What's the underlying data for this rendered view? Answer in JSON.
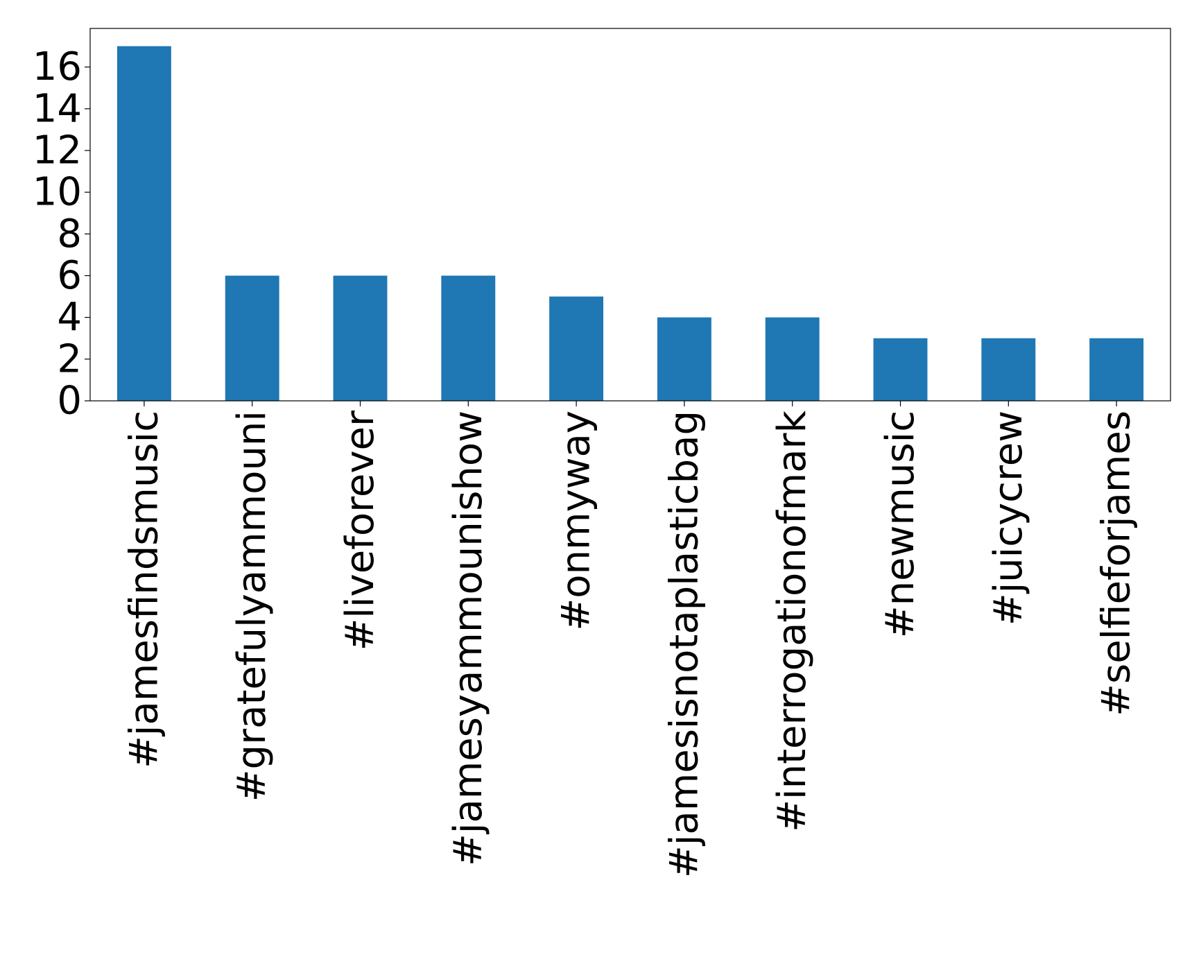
{
  "chart_data": {
    "type": "bar",
    "categories": [
      "#jamesfindsmusic",
      "#gratefulyammouni",
      "#liveforever",
      "#jamesyammounishow",
      "#onmyway",
      "#jamesisnotaplasticbag",
      "#interrogationofmark",
      "#newmusic",
      "#juicycrew",
      "#selfieforjames"
    ],
    "values": [
      17,
      6,
      6,
      6,
      5,
      4,
      4,
      3,
      3,
      3
    ],
    "color": "#1f77b4",
    "ylim": [
      0,
      17.85
    ],
    "yticks": [
      0,
      2,
      4,
      6,
      8,
      10,
      12,
      14,
      16
    ],
    "grid": false
  }
}
